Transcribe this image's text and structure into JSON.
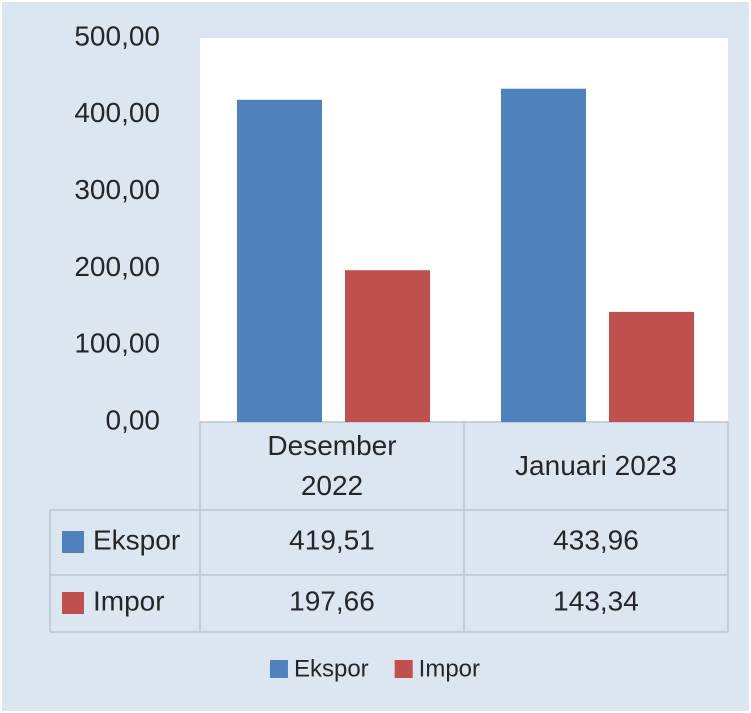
{
  "chart_data": {
    "type": "bar",
    "categories": [
      "Desember 2022",
      "Januari 2023"
    ],
    "series": [
      {
        "name": "Ekspor",
        "color": "#4f81bd",
        "values": [
          419.51,
          433.96
        ],
        "value_labels": [
          "419,51",
          "433,96"
        ]
      },
      {
        "name": "Impor",
        "color": "#c0504d",
        "values": [
          197.66,
          143.34
        ],
        "value_labels": [
          "197,66",
          "143,34"
        ]
      }
    ],
    "ylim": [
      0,
      500
    ],
    "yticks": [
      {
        "value": 0,
        "label": "0,00"
      },
      {
        "value": 100,
        "label": "100,00"
      },
      {
        "value": 200,
        "label": "200,00"
      },
      {
        "value": 300,
        "label": "300,00"
      },
      {
        "value": 400,
        "label": "400,00"
      },
      {
        "value": 500,
        "label": "500,00"
      }
    ],
    "grid": false,
    "legend": "bottom"
  }
}
